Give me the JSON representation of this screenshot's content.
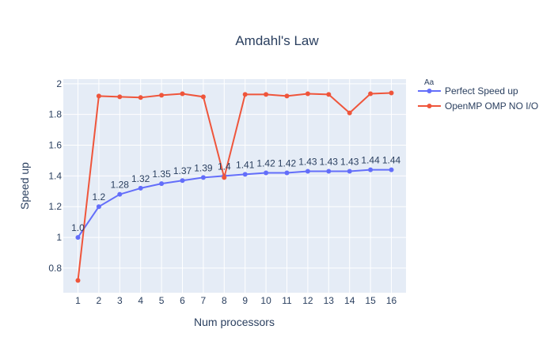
{
  "chart_data": {
    "type": "line",
    "title": "Amdahl's Law",
    "xlabel": "Num processors",
    "ylabel": "Speed up",
    "x": [
      1,
      2,
      3,
      4,
      5,
      6,
      7,
      8,
      9,
      10,
      11,
      12,
      13,
      14,
      15,
      16
    ],
    "xlim": [
      0.3,
      16.7
    ],
    "ylim": [
      0.64,
      2.03
    ],
    "yticks": [
      0.8,
      1,
      1.2,
      1.4,
      1.6,
      1.8,
      2
    ],
    "ytick_labels": [
      "0.8",
      "1",
      "1.2",
      "1.4",
      "1.6",
      "1.8",
      "2"
    ],
    "grid": true,
    "legend_title": "Aa",
    "legend_position": "top-right outside",
    "series": [
      {
        "name": "Perfect Speed up",
        "color": "#636efa",
        "values": [
          1.0,
          1.2,
          1.28,
          1.32,
          1.35,
          1.37,
          1.39,
          1.4,
          1.41,
          1.42,
          1.42,
          1.43,
          1.43,
          1.43,
          1.44,
          1.44
        ],
        "labels": [
          "1.0",
          "1.2",
          "1.28",
          "1.32",
          "1.35",
          "1.37",
          "1.39",
          "1.4",
          "1.41",
          "1.42",
          "1.42",
          "1.43",
          "1.43",
          "1.43",
          "1.44",
          "1.44"
        ]
      },
      {
        "name": "OpenMP OMP NO I/O",
        "color": "#ef553b",
        "values": [
          0.72,
          1.92,
          1.915,
          1.91,
          1.925,
          1.935,
          1.915,
          1.39,
          1.93,
          1.93,
          1.92,
          1.935,
          1.93,
          1.81,
          1.935,
          1.94
        ]
      }
    ]
  }
}
